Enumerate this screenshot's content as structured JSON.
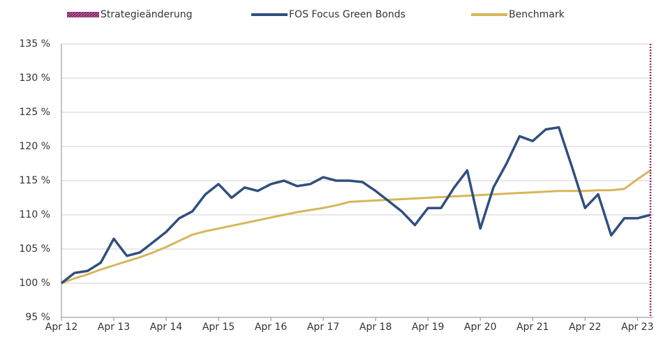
{
  "chart_data": {
    "type": "line",
    "categories": [
      "Apr 12",
      null,
      null,
      null,
      "Apr 13",
      null,
      null,
      null,
      "Apr 14",
      null,
      null,
      null,
      "Apr 15",
      null,
      null,
      null,
      "Apr 16",
      null,
      null,
      null,
      "Apr 17",
      null,
      null,
      null,
      "Apr 18",
      null,
      null,
      null,
      "Apr 19",
      null,
      null,
      null,
      "Apr 20",
      null,
      null,
      null,
      "Apr 21",
      null,
      null,
      null,
      "Apr 22",
      null,
      null,
      null,
      "Apr 23",
      null
    ],
    "series": [
      {
        "name": "FOS Focus Green Bonds",
        "color": "#2f4f7f",
        "values": [
          100,
          101.5,
          101.8,
          103,
          106.5,
          104,
          104.5,
          106,
          107.5,
          109.5,
          110.5,
          113,
          114.5,
          112.5,
          114,
          113.5,
          114.5,
          115,
          114.2,
          114.5,
          115.5,
          115,
          115,
          114.8,
          113.5,
          112,
          110.5,
          108.5,
          111,
          111,
          114,
          116.5,
          108,
          114,
          117.5,
          121.5,
          120.8,
          122.5,
          122.8,
          117,
          111,
          113,
          107,
          109.5,
          109.5,
          110
        ]
      },
      {
        "name": "Benchmark",
        "color": "#d6b65a",
        "values": [
          100,
          100.7,
          101.3,
          102,
          102.6,
          103.2,
          103.8,
          104.5,
          105.3,
          106.2,
          107.1,
          107.6,
          108,
          108.4,
          108.8,
          109.2,
          109.6,
          110,
          110.4,
          110.7,
          111,
          111.4,
          111.9,
          112,
          112.1,
          112.2,
          112.3,
          112.4,
          112.5,
          112.6,
          112.7,
          112.8,
          112.9,
          113,
          113.1,
          113.2,
          113.3,
          113.4,
          113.5,
          113.5,
          113.5,
          113.6,
          113.6,
          113.8,
          115.2,
          116.5
        ]
      }
    ],
    "events": [
      {
        "name": "Strategieänderung",
        "color": "#8e2a6a",
        "category_index": 45
      }
    ],
    "ylim": [
      95,
      135
    ],
    "yticks": [
      {
        "value": 95,
        "label": "95 %"
      },
      {
        "value": 100,
        "label": "100 %"
      },
      {
        "value": 105,
        "label": "105 %"
      },
      {
        "value": 110,
        "label": "110 %"
      },
      {
        "value": 115,
        "label": "115 %"
      },
      {
        "value": 120,
        "label": "120 %"
      },
      {
        "value": 125,
        "label": "125 %"
      },
      {
        "value": 130,
        "label": "130 %"
      },
      {
        "value": 135,
        "label": "135 %"
      }
    ],
    "grid": true,
    "legend": "top"
  }
}
